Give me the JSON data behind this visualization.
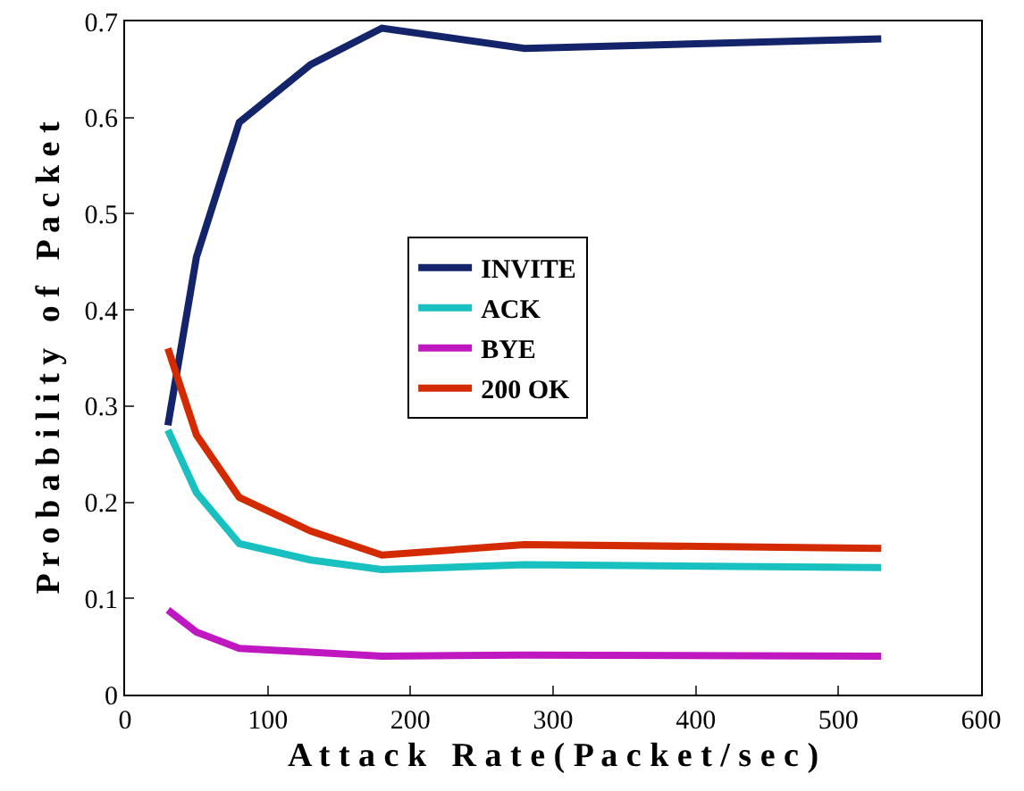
{
  "chart_data": {
    "type": "line",
    "xlabel": "A t t a c k   R a t e ( P a c k e t / s e c )",
    "ylabel": "P r o b a b i l i t y   o f   P a c k e t",
    "x": [
      30,
      50,
      80,
      130,
      180,
      280,
      530
    ],
    "series": [
      {
        "name": "INVITE",
        "color": "#14246a",
        "values": [
          0.28,
          0.455,
          0.595,
          0.655,
          0.693,
          0.672,
          0.682
        ]
      },
      {
        "name": "ACK",
        "color": "#18c0c0",
        "values": [
          0.275,
          0.21,
          0.157,
          0.14,
          0.13,
          0.135,
          0.132
        ]
      },
      {
        "name": "BYE",
        "color": "#c018c0",
        "values": [
          0.088,
          0.065,
          0.048,
          0.044,
          0.04,
          0.041,
          0.04
        ]
      },
      {
        "name": "200 OK",
        "color": "#d42a00",
        "values": [
          0.36,
          0.27,
          0.205,
          0.17,
          0.145,
          0.156,
          0.152
        ]
      }
    ],
    "xlim": [
      0,
      600
    ],
    "xticks": [
      0,
      100,
      200,
      300,
      400,
      500,
      600
    ],
    "ylim": [
      0,
      0.7
    ],
    "yticks": [
      {
        "value": 0,
        "label": "0"
      },
      0.1,
      0.2,
      0.3,
      0.4,
      0.5,
      0.6,
      0.7
    ],
    "grid": false,
    "legend": "center",
    "marker": "none",
    "line_style": "solid"
  }
}
